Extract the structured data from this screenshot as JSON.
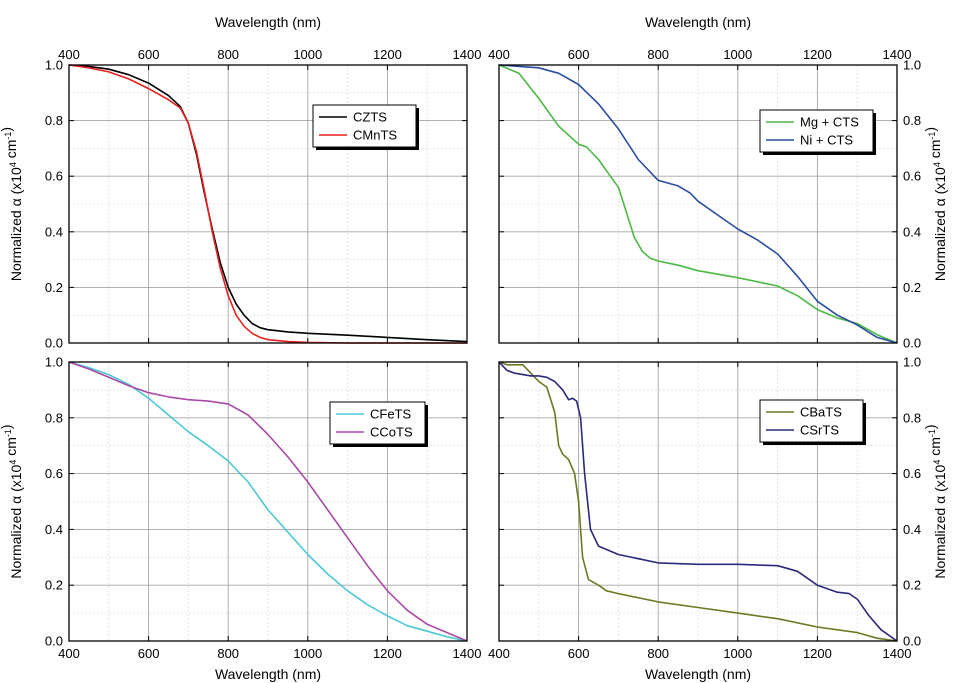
{
  "chart_data": [
    {
      "type": "line",
      "panel": "top-left",
      "xlabel_top": "Wavelength (nm)",
      "ylabel": "Normalized α (x10⁴ cm⁻¹)",
      "xlim": [
        400,
        1400
      ],
      "ylim": [
        0,
        1.0
      ],
      "xticks": [
        "400",
        "600",
        "800",
        "1000",
        "1200",
        "1400"
      ],
      "yticks": [
        "0.0",
        "0.2",
        "0.4",
        "0.6",
        "0.8",
        "1.0"
      ],
      "y_axis_side": "left",
      "grid": true,
      "legend_position": "top-right",
      "series": [
        {
          "name": "CZTS",
          "color": "#000000",
          "x": [
            400,
            450,
            500,
            550,
            600,
            650,
            680,
            700,
            720,
            740,
            760,
            780,
            800,
            820,
            840,
            860,
            880,
            900,
            950,
            1000,
            1100,
            1200,
            1300,
            1400
          ],
          "y": [
            1.0,
            0.995,
            0.985,
            0.965,
            0.935,
            0.89,
            0.85,
            0.79,
            0.68,
            0.54,
            0.41,
            0.29,
            0.2,
            0.14,
            0.1,
            0.07,
            0.055,
            0.048,
            0.04,
            0.035,
            0.028,
            0.02,
            0.012,
            0.005
          ]
        },
        {
          "name": "CMnTS",
          "color": "#e8211d",
          "x": [
            400,
            450,
            500,
            550,
            600,
            650,
            680,
            700,
            720,
            740,
            760,
            780,
            800,
            820,
            840,
            860,
            880,
            900,
            950,
            1000,
            1100,
            1400
          ],
          "y": [
            1.0,
            0.99,
            0.975,
            0.95,
            0.915,
            0.875,
            0.845,
            0.79,
            0.69,
            0.55,
            0.4,
            0.27,
            0.17,
            0.1,
            0.06,
            0.035,
            0.02,
            0.012,
            0.005,
            0.002,
            0.0,
            0.0
          ]
        }
      ]
    },
    {
      "type": "line",
      "panel": "top-right",
      "xlabel_top": "Wavelength (nm)",
      "ylabel": "Normalized α (x10⁴ cm⁻¹)",
      "xlim": [
        400,
        1400
      ],
      "ylim": [
        0,
        1.0
      ],
      "xticks": [
        "400",
        "600",
        "800",
        "1000",
        "1200",
        "1400"
      ],
      "yticks": [
        "0.0",
        "0.2",
        "0.4",
        "0.6",
        "0.8",
        "1.0"
      ],
      "y_axis_side": "right",
      "grid": true,
      "legend_position": "top-right",
      "series": [
        {
          "name": "Mg + CTS",
          "color": "#4cb944",
          "x": [
            400,
            450,
            500,
            550,
            600,
            620,
            650,
            680,
            700,
            720,
            740,
            760,
            780,
            800,
            850,
            900,
            1000,
            1100,
            1150,
            1200,
            1250,
            1300,
            1350,
            1400
          ],
          "y": [
            1.0,
            0.97,
            0.88,
            0.78,
            0.715,
            0.705,
            0.66,
            0.6,
            0.56,
            0.47,
            0.38,
            0.33,
            0.305,
            0.295,
            0.28,
            0.26,
            0.235,
            0.205,
            0.17,
            0.12,
            0.09,
            0.07,
            0.03,
            0.0
          ]
        },
        {
          "name": "Ni + CTS",
          "color": "#2a4ea3",
          "x": [
            400,
            450,
            500,
            550,
            600,
            650,
            700,
            750,
            800,
            850,
            880,
            900,
            950,
            1000,
            1050,
            1100,
            1150,
            1200,
            1250,
            1300,
            1350,
            1400
          ],
          "y": [
            1.0,
            0.995,
            0.99,
            0.97,
            0.93,
            0.86,
            0.77,
            0.66,
            0.585,
            0.565,
            0.54,
            0.51,
            0.46,
            0.41,
            0.37,
            0.32,
            0.24,
            0.15,
            0.1,
            0.065,
            0.02,
            0.0
          ]
        }
      ]
    },
    {
      "type": "line",
      "panel": "bottom-left",
      "xlabel": "Wavelength (nm)",
      "ylabel": "Normalized α (x10⁴ cm⁻¹)",
      "xlim": [
        400,
        1400
      ],
      "ylim": [
        0,
        1.0
      ],
      "xticks": [
        "400",
        "600",
        "800",
        "1000",
        "1200",
        "1400"
      ],
      "yticks": [
        "0.0",
        "0.2",
        "0.4",
        "0.6",
        "0.8",
        "1.0"
      ],
      "y_axis_side": "left",
      "grid": true,
      "legend_position": "top-right",
      "series": [
        {
          "name": "CFeTS",
          "color": "#4cc9d6",
          "x": [
            400,
            450,
            500,
            550,
            600,
            650,
            700,
            750,
            800,
            850,
            900,
            950,
            1000,
            1050,
            1100,
            1150,
            1200,
            1250,
            1300,
            1350,
            1400
          ],
          "y": [
            1.0,
            0.98,
            0.955,
            0.92,
            0.87,
            0.81,
            0.75,
            0.7,
            0.645,
            0.57,
            0.47,
            0.39,
            0.31,
            0.24,
            0.18,
            0.13,
            0.09,
            0.055,
            0.035,
            0.015,
            0.0
          ]
        },
        {
          "name": "CCoTS",
          "color": "#a94aa8",
          "x": [
            400,
            450,
            500,
            550,
            600,
            650,
            700,
            750,
            800,
            850,
            900,
            950,
            1000,
            1050,
            1100,
            1150,
            1200,
            1250,
            1300,
            1350,
            1400
          ],
          "y": [
            1.0,
            0.975,
            0.945,
            0.915,
            0.89,
            0.875,
            0.865,
            0.86,
            0.85,
            0.81,
            0.74,
            0.66,
            0.57,
            0.47,
            0.37,
            0.27,
            0.18,
            0.11,
            0.06,
            0.03,
            0.0
          ]
        }
      ]
    },
    {
      "type": "line",
      "panel": "bottom-right",
      "xlabel": "Wavelength (nm)",
      "ylabel": "Normalized α (x10⁴ cm⁻¹)",
      "xlim": [
        400,
        1400
      ],
      "ylim": [
        0,
        1.0
      ],
      "xticks": [
        "400",
        "600",
        "800",
        "1000",
        "1200",
        "1400"
      ],
      "yticks": [
        "0.0",
        "0.2",
        "0.4",
        "0.6",
        "0.8",
        "1.0"
      ],
      "y_axis_side": "right",
      "grid": true,
      "legend_position": "top-right",
      "series": [
        {
          "name": "CBaTS",
          "color": "#6b7a22",
          "x": [
            400,
            420,
            440,
            460,
            480,
            500,
            520,
            540,
            550,
            560,
            575,
            590,
            600,
            610,
            625,
            650,
            670,
            700,
            800,
            900,
            1000,
            1100,
            1200,
            1300,
            1350,
            1400
          ],
          "y": [
            1.0,
            0.99,
            0.99,
            0.99,
            0.96,
            0.93,
            0.91,
            0.82,
            0.7,
            0.67,
            0.65,
            0.6,
            0.5,
            0.3,
            0.22,
            0.2,
            0.18,
            0.17,
            0.14,
            0.12,
            0.1,
            0.08,
            0.05,
            0.03,
            0.01,
            0.0
          ]
        },
        {
          "name": "CSrTS",
          "color": "#2b2a7a",
          "x": [
            400,
            420,
            440,
            460,
            480,
            500,
            520,
            540,
            560,
            575,
            585,
            595,
            605,
            615,
            630,
            650,
            700,
            800,
            900,
            1000,
            1100,
            1150,
            1200,
            1250,
            1280,
            1300,
            1330,
            1360,
            1400
          ],
          "y": [
            1.0,
            0.97,
            0.96,
            0.955,
            0.95,
            0.95,
            0.945,
            0.93,
            0.9,
            0.865,
            0.87,
            0.86,
            0.8,
            0.6,
            0.4,
            0.34,
            0.31,
            0.28,
            0.275,
            0.275,
            0.27,
            0.25,
            0.2,
            0.175,
            0.17,
            0.15,
            0.09,
            0.04,
            0.0
          ]
        }
      ]
    }
  ]
}
